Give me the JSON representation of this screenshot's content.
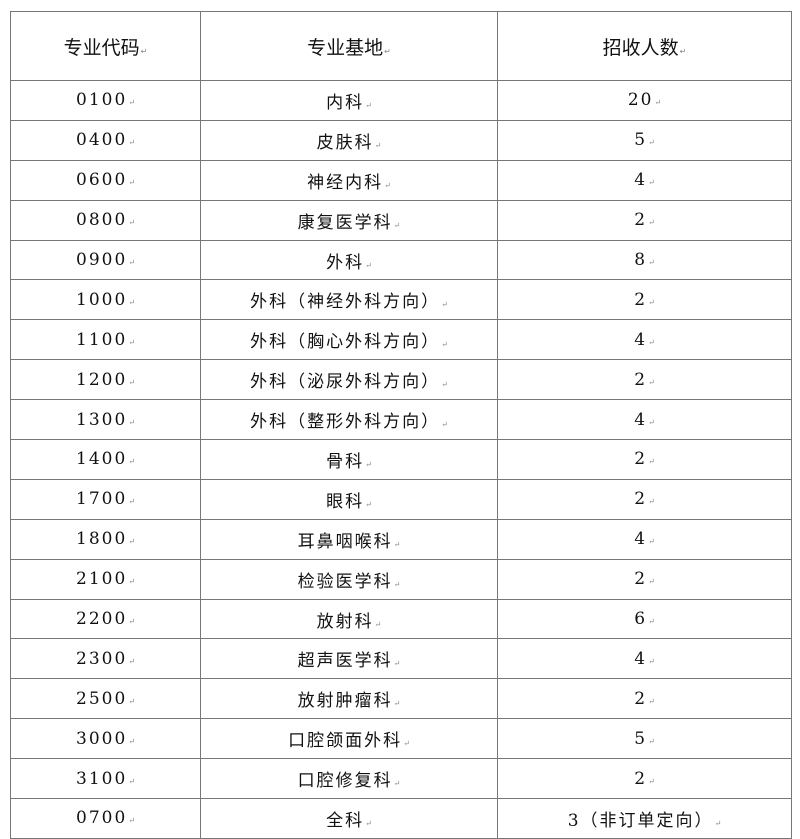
{
  "table": {
    "headers": [
      "专业代码",
      "专业基地",
      "招收人数"
    ],
    "rows": [
      [
        "0100",
        "内科",
        "20"
      ],
      [
        "0400",
        "皮肤科",
        "5"
      ],
      [
        "0600",
        "神经内科",
        "4"
      ],
      [
        "0800",
        "康复医学科",
        "2"
      ],
      [
        "0900",
        "外科",
        "8"
      ],
      [
        "1000",
        "外科（神经外科方向）",
        "2"
      ],
      [
        "1100",
        "外科（胸心外科方向）",
        "4"
      ],
      [
        "1200",
        "外科（泌尿外科方向）",
        "2"
      ],
      [
        "1300",
        "外科（整形外科方向）",
        "4"
      ],
      [
        "1400",
        "骨科",
        "2"
      ],
      [
        "1700",
        "眼科",
        "2"
      ],
      [
        "1800",
        "耳鼻咽喉科",
        "4"
      ],
      [
        "2100",
        "检验医学科",
        "2"
      ],
      [
        "2200",
        "放射科",
        "6"
      ],
      [
        "2300",
        "超声医学科",
        "4"
      ],
      [
        "2500",
        "放射肿瘤科",
        "2"
      ],
      [
        "3000",
        "口腔颌面外科",
        "5"
      ],
      [
        "3100",
        "口腔修复科",
        "2"
      ],
      [
        "0700",
        "全科",
        "3（非订单定向）"
      ]
    ]
  }
}
